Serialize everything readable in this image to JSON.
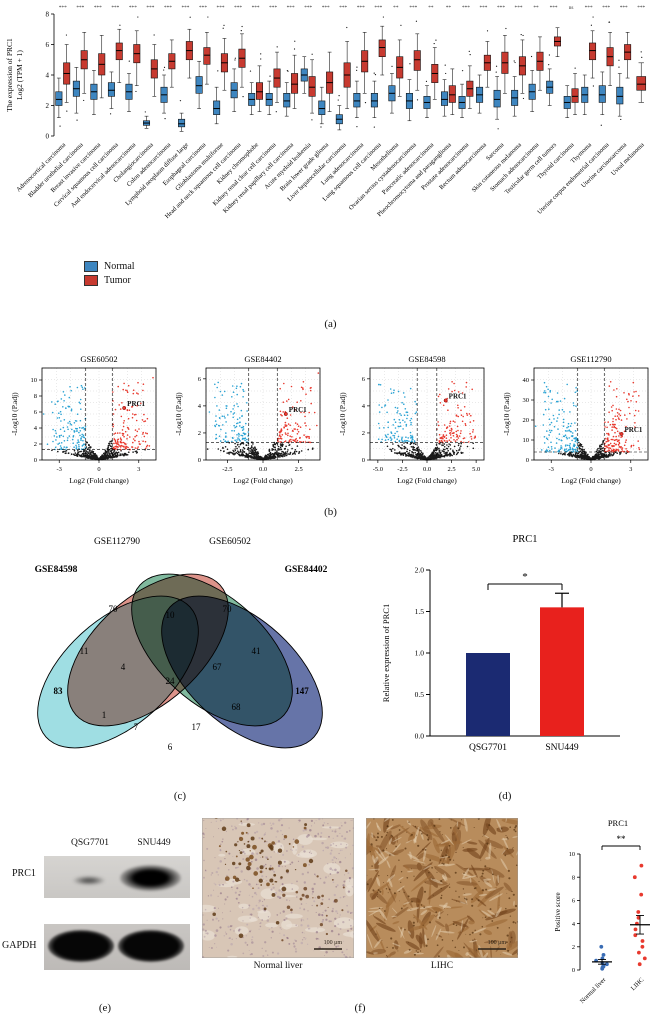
{
  "figure": {
    "panel_labels": {
      "a": "(a)",
      "b": "(b)",
      "c": "(c)",
      "d": "(d)",
      "e": "(e)",
      "f": "(f)"
    }
  },
  "colors": {
    "normal": "#3e86c0",
    "tumor": "#c73a30",
    "volcano_down": "#2ba3d4",
    "volcano_up": "#e8392e",
    "bar_navy": "#1b2a72",
    "bar_red": "#e8211d"
  },
  "legend_a": {
    "items": [
      {
        "label": "Normal"
      },
      {
        "label": "Tumor"
      }
    ]
  },
  "panel_e": {
    "lane_labels": [
      "QSG7701",
      "SNU449"
    ],
    "row_labels": [
      "PRC1",
      "GAPDH"
    ]
  },
  "panel_f": {
    "captions": [
      "Normal liver",
      "LIHC"
    ],
    "scalebar": "100 μm"
  },
  "chart_data": [
    {
      "type": "box",
      "target": "boxplot-a",
      "ylabel_line1": "The expression of PRC1",
      "ylabel_line2": "Log2 (TPM + 1)",
      "ylim": [
        0,
        8
      ],
      "yticks": [
        0,
        2,
        4,
        6,
        8
      ],
      "legend": [
        "Normal",
        "Tumor"
      ],
      "categories": [
        "Adrenocortical carcinoma",
        "Bladder urothelial carcinoma",
        "Breast invasive carcinoma",
        "Cervical squamous cell carcinoma",
        "And endocervical adenocarcinoma",
        "Cholangiocarcinoma",
        "Colon adenocarcinoma",
        "Lymphoid neoplasm diffuse large",
        "Esophageal carcinoma",
        "Glioblastoma multiforme",
        "Head and neck squamous cell carcinoma",
        "Kidney chromophobe",
        "Kidney renal clear cell carcinoma",
        "Kidney renal papillary cell carcinoma",
        "Acute myeloid leukemia",
        "Brain lower grade glioma",
        "Liver hepatocellular carcinoma",
        "Lung adenocarcinoma",
        "Lung squamous cell carcinoma",
        "Mesothelioma",
        "Ovarian serous cystadenocarcinoma",
        "Pancreatic adenocarcinoma",
        "Pheochromocytoma and paraganglioma",
        "Prostate adenocarcinoma",
        "Rectum adenocarcinoma",
        "Sarcoma",
        "Skin cutaneous melanoma",
        "Stomach adenocarcinoma",
        "Testicular germ cell tumors",
        "Thyroid carcinoma",
        "Thymoma",
        "Uterine corpus endometrial carcinoma",
        "Uterine carcinosarcoma",
        "Uveal melanoma"
      ],
      "normal": [
        [
          1.2,
          2.0,
          2.4,
          2.9,
          3.8
        ],
        [
          1.5,
          2.6,
          3.1,
          3.6,
          4.5
        ],
        [
          1.4,
          2.4,
          2.9,
          3.4,
          4.3
        ],
        [
          1.8,
          2.6,
          3.0,
          3.5,
          4.2
        ],
        [
          1.6,
          2.4,
          2.9,
          3.4,
          4.1
        ],
        [
          0.5,
          0.7,
          0.85,
          1.0,
          1.3
        ],
        [
          1.5,
          2.2,
          2.7,
          3.2,
          4.0
        ],
        [
          0.3,
          0.6,
          0.8,
          1.1,
          1.5
        ],
        [
          1.8,
          2.8,
          3.3,
          3.9,
          4.9
        ],
        [
          0.8,
          1.4,
          1.8,
          2.3,
          3.2
        ],
        [
          1.6,
          2.5,
          3.0,
          3.5,
          4.4
        ],
        [
          1.4,
          2.0,
          2.4,
          2.8,
          3.5
        ],
        [
          1.4,
          2.0,
          2.4,
          2.8,
          3.6
        ],
        [
          1.3,
          1.9,
          2.3,
          2.8,
          3.5
        ],
        [
          2.8,
          3.6,
          4.0,
          4.4,
          5.2
        ],
        [
          0.8,
          1.4,
          1.8,
          2.3,
          3.2
        ],
        [
          0.4,
          0.8,
          1.1,
          1.4,
          2.0
        ],
        [
          1.2,
          1.9,
          2.3,
          2.8,
          3.6
        ],
        [
          1.2,
          1.9,
          2.3,
          2.8,
          3.6
        ],
        [
          1.5,
          2.3,
          2.8,
          3.3,
          4.1
        ],
        [
          1.0,
          1.8,
          2.3,
          2.8,
          3.7
        ],
        [
          1.2,
          1.8,
          2.2,
          2.6,
          3.3
        ],
        [
          1.3,
          2.0,
          2.4,
          2.9,
          3.7
        ],
        [
          1.2,
          1.8,
          2.2,
          2.6,
          3.4
        ],
        [
          1.5,
          2.2,
          2.7,
          3.2,
          4.0
        ],
        [
          1.1,
          1.9,
          2.4,
          3.0,
          3.9
        ],
        [
          1.3,
          2.0,
          2.5,
          3.0,
          3.9
        ],
        [
          1.6,
          2.4,
          2.9,
          3.4,
          4.3
        ],
        [
          2.0,
          2.8,
          3.2,
          3.6,
          4.4
        ],
        [
          1.2,
          1.8,
          2.2,
          2.6,
          3.3
        ],
        [
          1.4,
          2.2,
          2.7,
          3.2,
          4.0
        ],
        [
          1.4,
          2.2,
          2.7,
          3.3,
          4.2
        ],
        [
          1.3,
          2.1,
          2.6,
          3.2,
          4.1
        ],
        null
      ],
      "tumor": [
        [
          2.2,
          3.4,
          4.1,
          4.8,
          6.0
        ],
        [
          2.8,
          4.4,
          5.0,
          5.6,
          6.8
        ],
        [
          2.5,
          4.0,
          4.7,
          5.4,
          6.6
        ],
        [
          3.5,
          5.0,
          5.6,
          6.1,
          7.0
        ],
        [
          3.3,
          4.8,
          5.4,
          6.0,
          6.9
        ],
        [
          2.6,
          3.8,
          4.4,
          5.0,
          6.0
        ],
        [
          3.2,
          4.4,
          4.9,
          5.4,
          6.3
        ],
        [
          3.8,
          5.0,
          5.6,
          6.2,
          7.0
        ],
        [
          3.4,
          4.7,
          5.3,
          5.8,
          6.8
        ],
        [
          3.0,
          4.2,
          4.8,
          5.4,
          6.4
        ],
        [
          3.2,
          4.5,
          5.1,
          5.7,
          6.7
        ],
        [
          1.6,
          2.4,
          2.9,
          3.5,
          4.6
        ],
        [
          2.2,
          3.2,
          3.8,
          4.4,
          5.5
        ],
        [
          1.8,
          2.8,
          3.4,
          4.1,
          5.3
        ],
        [
          1.5,
          2.6,
          3.2,
          3.9,
          5.0
        ],
        [
          1.6,
          2.8,
          3.5,
          4.2,
          5.5
        ],
        [
          1.8,
          3.2,
          4.0,
          4.8,
          6.2
        ],
        [
          2.8,
          4.2,
          4.9,
          5.6,
          6.8
        ],
        [
          4.0,
          5.2,
          5.8,
          6.3,
          7.2
        ],
        [
          2.6,
          3.8,
          4.5,
          5.2,
          6.3
        ],
        [
          3.0,
          4.3,
          5.0,
          5.6,
          6.7
        ],
        [
          2.4,
          3.5,
          4.1,
          4.7,
          5.8
        ],
        [
          1.4,
          2.2,
          2.7,
          3.3,
          4.4
        ],
        [
          1.8,
          2.6,
          3.1,
          3.6,
          4.6
        ],
        [
          3.2,
          4.3,
          4.8,
          5.3,
          6.2
        ],
        [
          2.8,
          4.1,
          4.8,
          5.5,
          6.6
        ],
        [
          2.8,
          4.0,
          4.6,
          5.2,
          6.3
        ],
        [
          3.0,
          4.3,
          4.9,
          5.5,
          6.5
        ],
        [
          5.2,
          5.9,
          6.2,
          6.5,
          7.1
        ],
        [
          1.4,
          2.2,
          2.6,
          3.1,
          4.1
        ],
        [
          3.8,
          5.0,
          5.6,
          6.1,
          6.9
        ],
        [
          3.3,
          4.6,
          5.2,
          5.8,
          6.8
        ],
        [
          3.8,
          5.0,
          5.5,
          6.0,
          6.8
        ],
        [
          2.2,
          3.0,
          3.4,
          3.9,
          4.8
        ]
      ],
      "sig": [
        "***",
        "***",
        "***",
        "***",
        "***",
        "***",
        "***",
        "***",
        "***",
        "***",
        "***",
        "***",
        "***",
        "***",
        "***",
        "***",
        "***",
        "***",
        "***",
        "**",
        "***",
        "**",
        "**",
        "***",
        "***",
        "***",
        "***",
        "**",
        "***",
        "ns",
        "***",
        "***",
        "***",
        "***"
      ]
    },
    {
      "type": "volcano",
      "target": "v0",
      "title": "GSE60502",
      "xlabel": "Log2 (Fold change)",
      "ylabel": "-Log10 (P.adj)",
      "xlim": [
        -4.3,
        4.3
      ],
      "xticks": [
        -3,
        0,
        3
      ],
      "xtick_labels": [
        "-3",
        "0",
        "3"
      ],
      "ylim": [
        0,
        11.5
      ],
      "yticks": [
        0,
        2,
        4,
        6,
        8,
        10
      ],
      "ytick_labels": [
        "0",
        "2",
        "4",
        "6",
        "8",
        "10"
      ],
      "thr_x": 1,
      "thr_y": 1.3,
      "x_sd": 1.25,
      "gene": "PRC1",
      "gene_xy": [
        1.9,
        6.5
      ]
    },
    {
      "type": "volcano",
      "target": "v1",
      "title": "GSE84402",
      "xlabel": "Log2 (Fold change)",
      "ylabel": "-Log10 (P.adj)",
      "xlim": [
        -4,
        4
      ],
      "xticks": [
        -2.5,
        0,
        2.5
      ],
      "xtick_labels": [
        "-2.5",
        "0.0",
        "2.5"
      ],
      "ylim": [
        0,
        6.8
      ],
      "yticks": [
        0,
        2,
        4,
        6
      ],
      "ytick_labels": [
        "0",
        "2",
        "4",
        "6"
      ],
      "thr_x": 1,
      "thr_y": 1.3,
      "x_sd": 1.2,
      "gene": "PRC1",
      "gene_xy": [
        1.6,
        3.4
      ]
    },
    {
      "type": "volcano",
      "target": "v2",
      "title": "GSE84598",
      "xlabel": "Log2 (Fold change)",
      "ylabel": "-Log10 (P.adj)",
      "xlim": [
        -5.8,
        5.8
      ],
      "xticks": [
        -5,
        -2.5,
        0,
        2.5,
        5
      ],
      "xtick_labels": [
        "-5.0",
        "-2.5",
        "0.0",
        "2.5",
        "5.0"
      ],
      "ylim": [
        0,
        6.8
      ],
      "yticks": [
        0,
        2,
        4,
        6
      ],
      "ytick_labels": [
        "0",
        "2",
        "4",
        "6"
      ],
      "thr_x": 1,
      "thr_y": 1.3,
      "x_sd": 1.7,
      "gene": "PRC1",
      "gene_xy": [
        1.9,
        4.4
      ]
    },
    {
      "type": "volcano",
      "target": "v3",
      "title": "GSE112790",
      "xlabel": "Log2 (Fold change)",
      "ylabel": "-Log10 (P.adj)",
      "xlim": [
        -4.3,
        4.3
      ],
      "xticks": [
        -3,
        0,
        3
      ],
      "xtick_labels": [
        "-3",
        "0",
        "3"
      ],
      "ylim": [
        0,
        46
      ],
      "yticks": [
        0,
        10,
        20,
        30,
        40
      ],
      "ytick_labels": [
        "0",
        "10",
        "20",
        "30",
        "40"
      ],
      "thr_x": 1,
      "thr_y": 4,
      "x_sd": 1.2,
      "gene": "PRC1",
      "gene_xy": [
        2.3,
        13
      ]
    },
    {
      "type": "venn",
      "target": "venn",
      "sets": [
        {
          "name": "GSE84598",
          "color": "#7ad1d8",
          "bold": true
        },
        {
          "name": "GSE112790",
          "color": "#cf6a5d",
          "bold": false
        },
        {
          "name": "GSE60502",
          "color": "#4f9e78",
          "bold": false
        },
        {
          "name": "GSE84402",
          "color": "#2b3f87",
          "bold": true
        }
      ],
      "counts": {
        "A": 83,
        "B": 70,
        "C": 70,
        "D": 147,
        "AB": 11,
        "AC": 1,
        "AD": 6,
        "BC": 10,
        "BD": 68,
        "CD": 41,
        "ABC": 4,
        "ABD": 17,
        "ACD": 7,
        "BCD": 67,
        "ABCD": 24
      }
    },
    {
      "type": "bar",
      "target": "bar-d",
      "title": "PRC1",
      "ylabel": "Relative expression of PRC1",
      "ylim": [
        0,
        2.0
      ],
      "yticks": [
        0,
        0.5,
        1.0,
        1.5,
        2.0
      ],
      "ytick_labels": [
        "0.0",
        "0.5",
        "1.0",
        "1.5",
        "2.0"
      ],
      "categories": [
        "QSG7701",
        "SNU449"
      ],
      "values": [
        1.0,
        1.55
      ],
      "errors": [
        0,
        0.17
      ],
      "bar_colors": [
        "#1b2a72",
        "#e8211d"
      ],
      "sig": "*"
    },
    {
      "type": "dot",
      "target": "dot-f",
      "title": "PRC1",
      "ylabel": "Positive score",
      "ylim": [
        0,
        10
      ],
      "yticks": [
        0,
        2,
        4,
        6,
        8,
        10
      ],
      "sig": "**",
      "groups": [
        {
          "label": "Normal liver",
          "color": "#3a6cb4",
          "points": [
            0.1,
            0.2,
            0.3,
            0.4,
            0.5,
            0.6,
            0.8,
            1.0,
            1.3,
            2.0
          ],
          "mean": 0.7,
          "sem": 0.2
        },
        {
          "label": "LIHC",
          "color": "#e8392e",
          "points": [
            0.5,
            1.0,
            1.5,
            2.0,
            2.5,
            3.0,
            3.5,
            4.0,
            4.5,
            5.0,
            6.5,
            8.0,
            9.0
          ],
          "mean": 3.9,
          "sem": 0.8
        }
      ]
    }
  ]
}
